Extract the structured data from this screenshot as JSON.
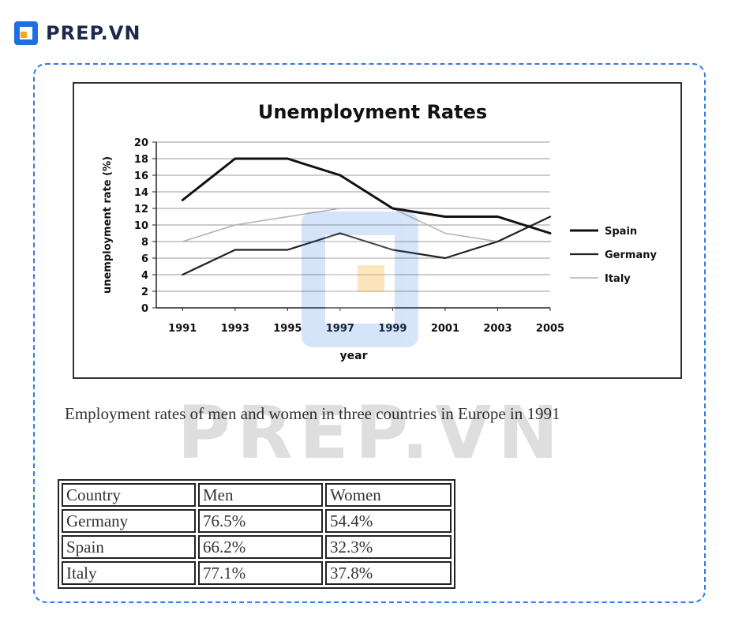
{
  "brand": {
    "name": "PREP.VN",
    "mark_color": "#1f6fe0",
    "accent_color": "#f5a623"
  },
  "watermark": {
    "text": "PREP.VN"
  },
  "chart_data": {
    "type": "line",
    "title": "Unemployment Rates",
    "xlabel": "year",
    "ylabel": "unemployment rate (%)",
    "x": [
      "1991",
      "1993",
      "1995",
      "1997",
      "1999",
      "2001",
      "2003",
      "2005"
    ],
    "ylim": [
      0,
      20
    ],
    "yticks": [
      0,
      2,
      4,
      6,
      8,
      10,
      12,
      14,
      16,
      18,
      20
    ],
    "grid": true,
    "legend_position": "right",
    "series": [
      {
        "name": "Spain",
        "color": "#111111",
        "width": 3,
        "values": [
          13,
          18,
          18,
          16,
          12,
          11,
          11,
          9
        ]
      },
      {
        "name": "Germany",
        "color": "#222222",
        "width": 2.2,
        "values": [
          4,
          7,
          7,
          9,
          7,
          6,
          8,
          11
        ]
      },
      {
        "name": "Italy",
        "color": "#b0b0b0",
        "width": 1.5,
        "values": [
          8,
          10,
          11,
          12,
          12,
          9,
          8,
          8
        ]
      }
    ]
  },
  "caption": "Employment rates of men and women in three countries in Europe in 1991",
  "table": {
    "header": [
      "Country",
      "Men",
      "Women"
    ],
    "rows": [
      [
        "Germany",
        "76.5%",
        "54.4%"
      ],
      [
        "Spain",
        "66.2%",
        "32.3%"
      ],
      [
        "Italy",
        "77.1%",
        "37.8%"
      ]
    ]
  }
}
